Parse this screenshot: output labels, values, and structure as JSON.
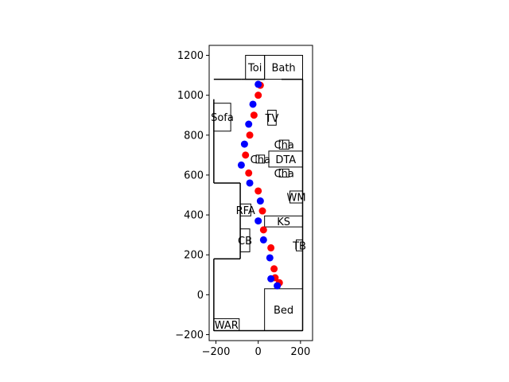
{
  "chart_data": {
    "type": "scatter",
    "title": "",
    "xlabel": "",
    "ylabel": "",
    "xlim": [
      -232,
      257
    ],
    "ylim": [
      -230,
      1250
    ],
    "grid": false,
    "x_ticks": [
      -200,
      0,
      200
    ],
    "y_ticks": [
      -200,
      0,
      200,
      400,
      600,
      800,
      1000,
      1200
    ],
    "tick_labels_x": [
      "−200",
      "0",
      "200"
    ],
    "tick_labels_y": [
      "−200",
      "0",
      "200",
      "400",
      "600",
      "800",
      "1000",
      "1200"
    ],
    "series": [
      {
        "color": "#ff0000",
        "points": [
          [
            10,
            1050
          ],
          [
            0,
            1000
          ],
          [
            -20,
            900
          ],
          [
            -40,
            800
          ],
          [
            -60,
            700
          ],
          [
            -45,
            610
          ],
          [
            0,
            520
          ],
          [
            20,
            420
          ],
          [
            25,
            325
          ],
          [
            60,
            235
          ],
          [
            75,
            130
          ],
          [
            80,
            85
          ],
          [
            100,
            60
          ]
        ]
      },
      {
        "color": "#0000ff",
        "points": [
          [
            0,
            1055
          ],
          [
            -25,
            955
          ],
          [
            -45,
            855
          ],
          [
            -65,
            755
          ],
          [
            -80,
            650
          ],
          [
            -40,
            560
          ],
          [
            10,
            470
          ],
          [
            0,
            370
          ],
          [
            25,
            275
          ],
          [
            55,
            185
          ],
          [
            60,
            80
          ],
          [
            90,
            45
          ]
        ]
      }
    ],
    "rooms": [
      {
        "label": "Toi",
        "x0": -60,
        "x1": 30,
        "y0": 1080,
        "y1": 1200
      },
      {
        "label": "Bath",
        "x0": 30,
        "x1": 210,
        "y0": 1080,
        "y1": 1200
      },
      {
        "label": "Sofa",
        "x0": -210,
        "x1": -130,
        "y0": 820,
        "y1": 960
      },
      {
        "label": "TV",
        "x0": 45,
        "x1": 85,
        "y0": 850,
        "y1": 925
      },
      {
        "label": "Cha",
        "x0": 100,
        "x1": 145,
        "y0": 730,
        "y1": 775
      },
      {
        "label": "DTA",
        "x0": 50,
        "x1": 210,
        "y0": 640,
        "y1": 720
      },
      {
        "label": "Cha",
        "x0": -10,
        "x1": 30,
        "y0": 660,
        "y1": 700
      },
      {
        "label": "Cha",
        "x0": 100,
        "x1": 145,
        "y0": 590,
        "y1": 630
      },
      {
        "label": "WM",
        "x0": 150,
        "x1": 210,
        "y0": 460,
        "y1": 520
      },
      {
        "label": "RFA",
        "x0": -85,
        "x1": -35,
        "y0": 395,
        "y1": 455
      },
      {
        "label": "KS",
        "x0": 30,
        "x1": 210,
        "y0": 340,
        "y1": 395
      },
      {
        "label": "CB",
        "x0": -85,
        "x1": -40,
        "y0": 215,
        "y1": 330
      },
      {
        "label": "TB",
        "x0": 180,
        "x1": 210,
        "y0": 220,
        "y1": 275
      },
      {
        "label": "Bed",
        "x0": 30,
        "x1": 210,
        "y0": -180,
        "y1": 30
      },
      {
        "label": "WAR",
        "x0": -210,
        "x1": -90,
        "y0": -180,
        "y1": -120
      }
    ],
    "walls": [
      [
        [
          -210,
          980
        ],
        [
          -210,
          560
        ]
      ],
      [
        [
          -210,
          1080
        ],
        [
          -80,
          1080
        ]
      ],
      [
        [
          -80,
          1080
        ],
        [
          30,
          1080
        ]
      ],
      [
        [
          110,
          1080
        ],
        [
          210,
          1080
        ]
      ],
      [
        [
          210,
          1080
        ],
        [
          210,
          -180
        ]
      ],
      [
        [
          210,
          -180
        ],
        [
          -210,
          -180
        ]
      ],
      [
        [
          -210,
          -180
        ],
        [
          -210,
          180
        ]
      ],
      [
        [
          -210,
          180
        ],
        [
          -85,
          180
        ]
      ],
      [
        [
          -85,
          180
        ],
        [
          -85,
          560
        ]
      ],
      [
        [
          -85,
          560
        ],
        [
          -210,
          560
        ]
      ]
    ]
  }
}
